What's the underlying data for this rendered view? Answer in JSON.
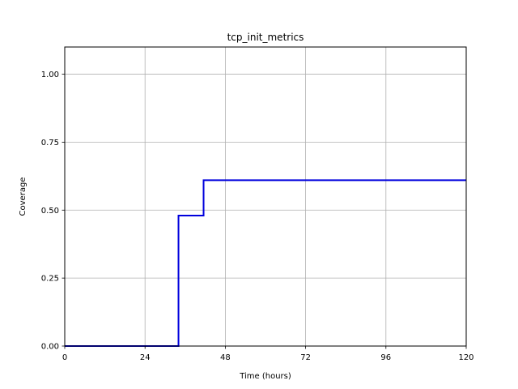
{
  "chart_data": {
    "type": "line",
    "title": "tcp_init_metrics",
    "xlabel": "Time (hours)",
    "ylabel": "Coverage",
    "xlim": [
      0,
      120
    ],
    "ylim": [
      0,
      1.1
    ],
    "xticks": [
      0,
      24,
      48,
      72,
      96,
      120
    ],
    "xtick_labels": [
      "0",
      "24",
      "48",
      "72",
      "96",
      "120"
    ],
    "yticks": [
      0,
      0.25,
      0.5,
      0.75,
      1.0
    ],
    "ytick_labels": [
      "0.00",
      "0.25",
      "0.50",
      "0.75",
      "1.00"
    ],
    "grid": true,
    "step": true,
    "series": [
      {
        "color": "#0000dd",
        "x": [
          0,
          34,
          34,
          41.5,
          41.5,
          120
        ],
        "y": [
          0,
          0,
          0.48,
          0.48,
          0.61,
          0.61
        ]
      }
    ]
  }
}
